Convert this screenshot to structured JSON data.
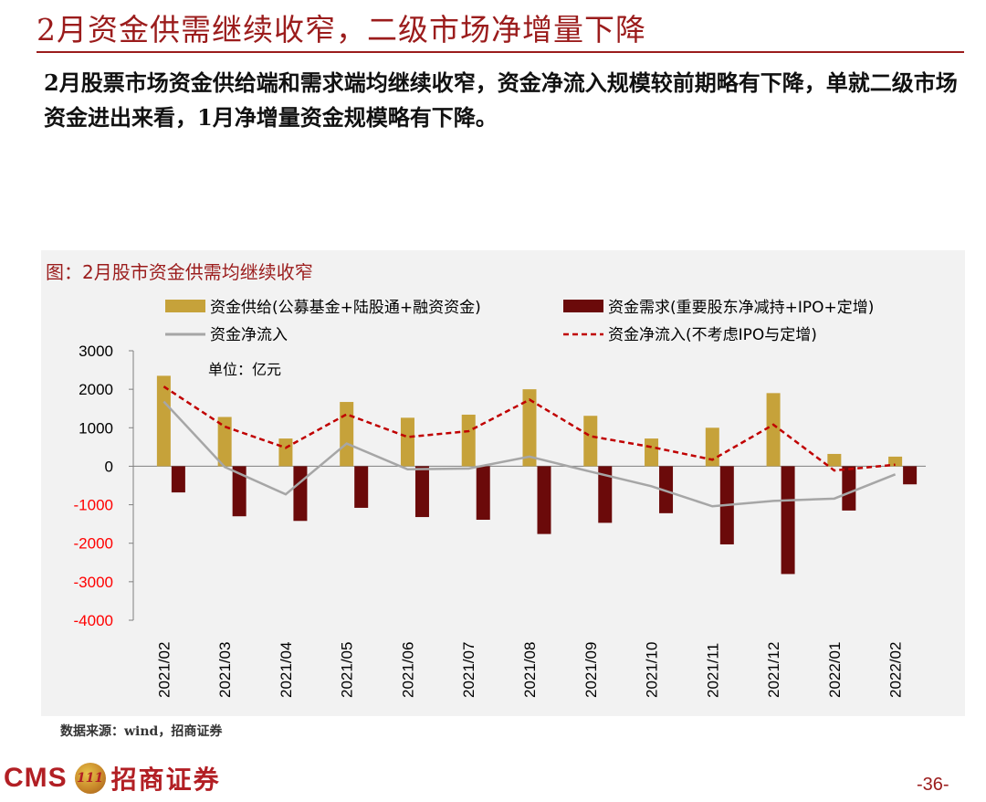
{
  "page": {
    "title": "2月资金供需继续收窄，二级市场净增量下降",
    "summary": "2月股票市场资金供给端和需求端均继续收窄，资金净流入规模较前期略有下降，单就二级市场资金进出来看，1月净增量资金规模略有下降。",
    "chart_title": "图：2月股市资金供需均继续收窄",
    "source": "数据来源：wind，招商证券",
    "page_number": "-36-",
    "logo_text": "CMS",
    "logo_badge_text": "111",
    "logo_cn": "招商证券"
  },
  "colors": {
    "brand": "#9b1c1c",
    "supply": "#c6a23a",
    "demand": "#6b0a0a",
    "net": "#a6a6a6",
    "net_ex": "#c00000",
    "panel_bg": "#f2f2f2",
    "negative_tick": "#ff0000"
  },
  "chart_data": {
    "type": "bar",
    "title": "图：2月股市资金供需均继续收窄",
    "unit_label": "单位：亿元",
    "categories": [
      "2021/02",
      "2021/03",
      "2021/04",
      "2021/05",
      "2021/06",
      "2021/07",
      "2021/08",
      "2021/09",
      "2021/10",
      "2021/11",
      "2021/12",
      "2022/01",
      "2022/02"
    ],
    "ylim": [
      -4000,
      3000
    ],
    "yticks": [
      3000,
      2000,
      1000,
      0,
      -1000,
      -2000,
      -3000,
      -4000
    ],
    "legend_position": "top",
    "series": [
      {
        "name": "资金供给(公募基金+陆股通+融资资金)",
        "kind": "bar",
        "values": [
          2350,
          1280,
          720,
          1670,
          1260,
          1340,
          2000,
          1310,
          720,
          1000,
          1900,
          320,
          250
        ]
      },
      {
        "name": "资金需求(重要股东净减持+IPO+定增)",
        "kind": "bar",
        "values": [
          -680,
          -1300,
          -1420,
          -1080,
          -1320,
          -1390,
          -1760,
          -1470,
          -1220,
          -2030,
          -2800,
          -1150,
          -470
        ]
      },
      {
        "name": "资金净流入",
        "kind": "line",
        "values": [
          1680,
          -20,
          -730,
          590,
          -80,
          -60,
          250,
          -140,
          -520,
          -1040,
          -900,
          -840,
          -210
        ]
      },
      {
        "name": "资金净流入(不考虑IPO与定增)",
        "kind": "dashed-line",
        "values": [
          2070,
          1030,
          480,
          1350,
          760,
          910,
          1730,
          780,
          500,
          170,
          1080,
          -110,
          40
        ]
      }
    ]
  }
}
